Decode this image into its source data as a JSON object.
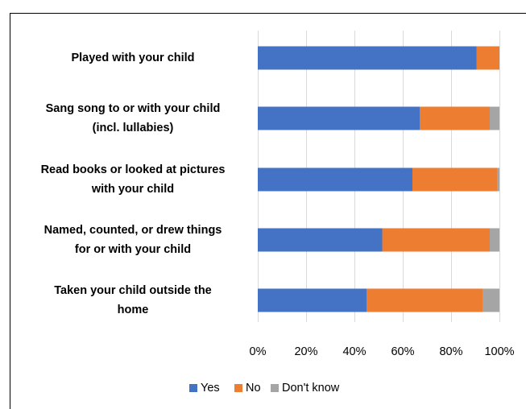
{
  "header_fragment": "",
  "chart_data": {
    "type": "bar",
    "orientation": "horizontal",
    "stacked": true,
    "title": "",
    "xlabel": "",
    "ylabel": "",
    "categories": [
      [
        "Played with your child"
      ],
      [
        "Sang song to or with your child",
        "(incl. lullabies)"
      ],
      [
        "Read books or looked at pictures",
        "with your child"
      ],
      [
        "Named, counted, or drew things",
        "for or with your child"
      ],
      [
        "Taken your child outside the",
        "home"
      ]
    ],
    "series": [
      {
        "name": "Yes",
        "color": "#4472C4",
        "values": [
          90.5,
          67,
          64,
          51.5,
          45
        ]
      },
      {
        "name": "No",
        "color": "#ED7D31",
        "values": [
          9.5,
          29,
          35,
          44.5,
          48
        ]
      },
      {
        "name": "Don't know",
        "color": "#A5A5A5",
        "values": [
          0,
          4,
          1,
          4,
          7
        ]
      }
    ],
    "xlim": [
      0,
      100
    ],
    "xticks": [
      0,
      20,
      40,
      60,
      80,
      100
    ],
    "xtick_labels": [
      "0%",
      "20%",
      "40%",
      "60%",
      "80%",
      "100%"
    ],
    "grid": "vertical",
    "legend_position": "bottom"
  }
}
